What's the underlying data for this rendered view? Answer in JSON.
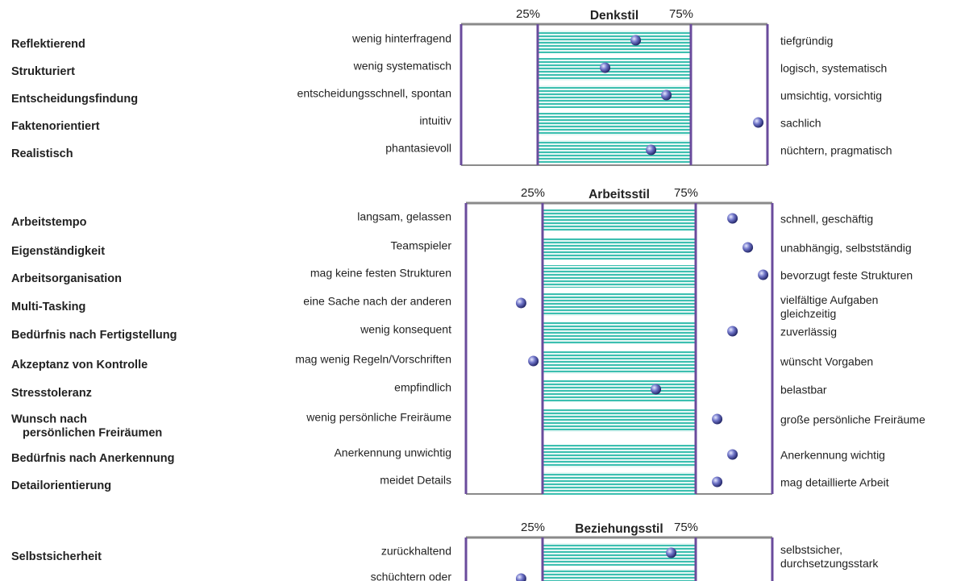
{
  "sections": [
    {
      "title": "Denkstil",
      "xlim": [
        0,
        100
      ],
      "ticks": [
        {
          "value": 25,
          "label": "25%"
        },
        {
          "value": 75,
          "label": "75%"
        }
      ],
      "rows": [
        {
          "label": [
            "Reflektierend"
          ],
          "left": "wenig hinterfragend",
          "right": [
            "tiefgründig"
          ],
          "value": 57
        },
        {
          "label": [
            "Strukturiert"
          ],
          "left": "wenig systematisch",
          "right": [
            "logisch, systematisch"
          ],
          "value": 47
        },
        {
          "label": [
            "Entscheidungsfindung"
          ],
          "left": "entscheidungsschnell, spontan",
          "right": [
            "umsichtig, vorsichtig"
          ],
          "value": 67
        },
        {
          "label": [
            "Faktenorientiert"
          ],
          "left": "intuitiv",
          "right": [
            "sachlich"
          ],
          "value": 97
        },
        {
          "label": [
            "Realistisch"
          ],
          "left": "phantasievoll",
          "right": [
            "nüchtern, pragmatisch"
          ],
          "value": 62
        }
      ]
    },
    {
      "title": "Arbeitsstil",
      "xlim": [
        0,
        100
      ],
      "ticks": [
        {
          "value": 25,
          "label": "25%"
        },
        {
          "value": 75,
          "label": "75%"
        }
      ],
      "rows": [
        {
          "label": [
            "Arbeitstempo"
          ],
          "left": "langsam, gelassen",
          "right": [
            "schnell, geschäftig"
          ],
          "value": 87
        },
        {
          "label": [
            "Eigenständigkeit"
          ],
          "left": "Teamspieler",
          "right": [
            "unabhängig, selbstständig"
          ],
          "value": 92
        },
        {
          "label": [
            "Arbeitsorganisation"
          ],
          "left": "mag keine festen Strukturen",
          "right": [
            "bevorzugt feste Strukturen"
          ],
          "value": 97
        },
        {
          "label": [
            "Multi-Tasking"
          ],
          "left": "eine Sache nach der anderen",
          "right": [
            "vielfältige Aufgaben",
            "gleichzeitig"
          ],
          "value": 18
        },
        {
          "label": [
            "Bedürfnis nach Fertigstellung"
          ],
          "left": "wenig konsequent",
          "right": [
            "zuverlässig"
          ],
          "value": 87
        },
        {
          "label": [
            "Akzeptanz von Kontrolle"
          ],
          "left": "mag wenig Regeln/Vorschriften",
          "right": [
            "wünscht Vorgaben"
          ],
          "value": 22
        },
        {
          "label": [
            "Stresstoleranz"
          ],
          "left": "empfindlich",
          "right": [
            "belastbar"
          ],
          "value": 62
        },
        {
          "label": [
            "Wunsch nach",
            "persönlichen Freiräumen"
          ],
          "left": "wenig persönliche Freiräume",
          "right": [
            "große persönliche Freiräume"
          ],
          "value": 82
        },
        {
          "label": [
            "Bedürfnis nach Anerkennung"
          ],
          "left": "Anerkennung unwichtig",
          "right": [
            "Anerkennung wichtig"
          ],
          "value": 87
        },
        {
          "label": [
            "Detailorientierung"
          ],
          "left": "meidet Details",
          "right": [
            "mag detaillierte Arbeit"
          ],
          "value": 82
        }
      ]
    },
    {
      "title": "Beziehungsstil",
      "xlim": [
        0,
        100
      ],
      "ticks": [
        {
          "value": 25,
          "label": "25%"
        },
        {
          "value": 75,
          "label": "75%"
        }
      ],
      "rows": [
        {
          "label": [
            "Selbstsicherheit"
          ],
          "left": "zurückhaltend",
          "right": [
            "selbstsicher,",
            "durchsetzungsstark"
          ],
          "value": 67
        },
        {
          "label": [],
          "left": "schüchtern oder",
          "right": [],
          "value": 18
        }
      ]
    }
  ]
}
